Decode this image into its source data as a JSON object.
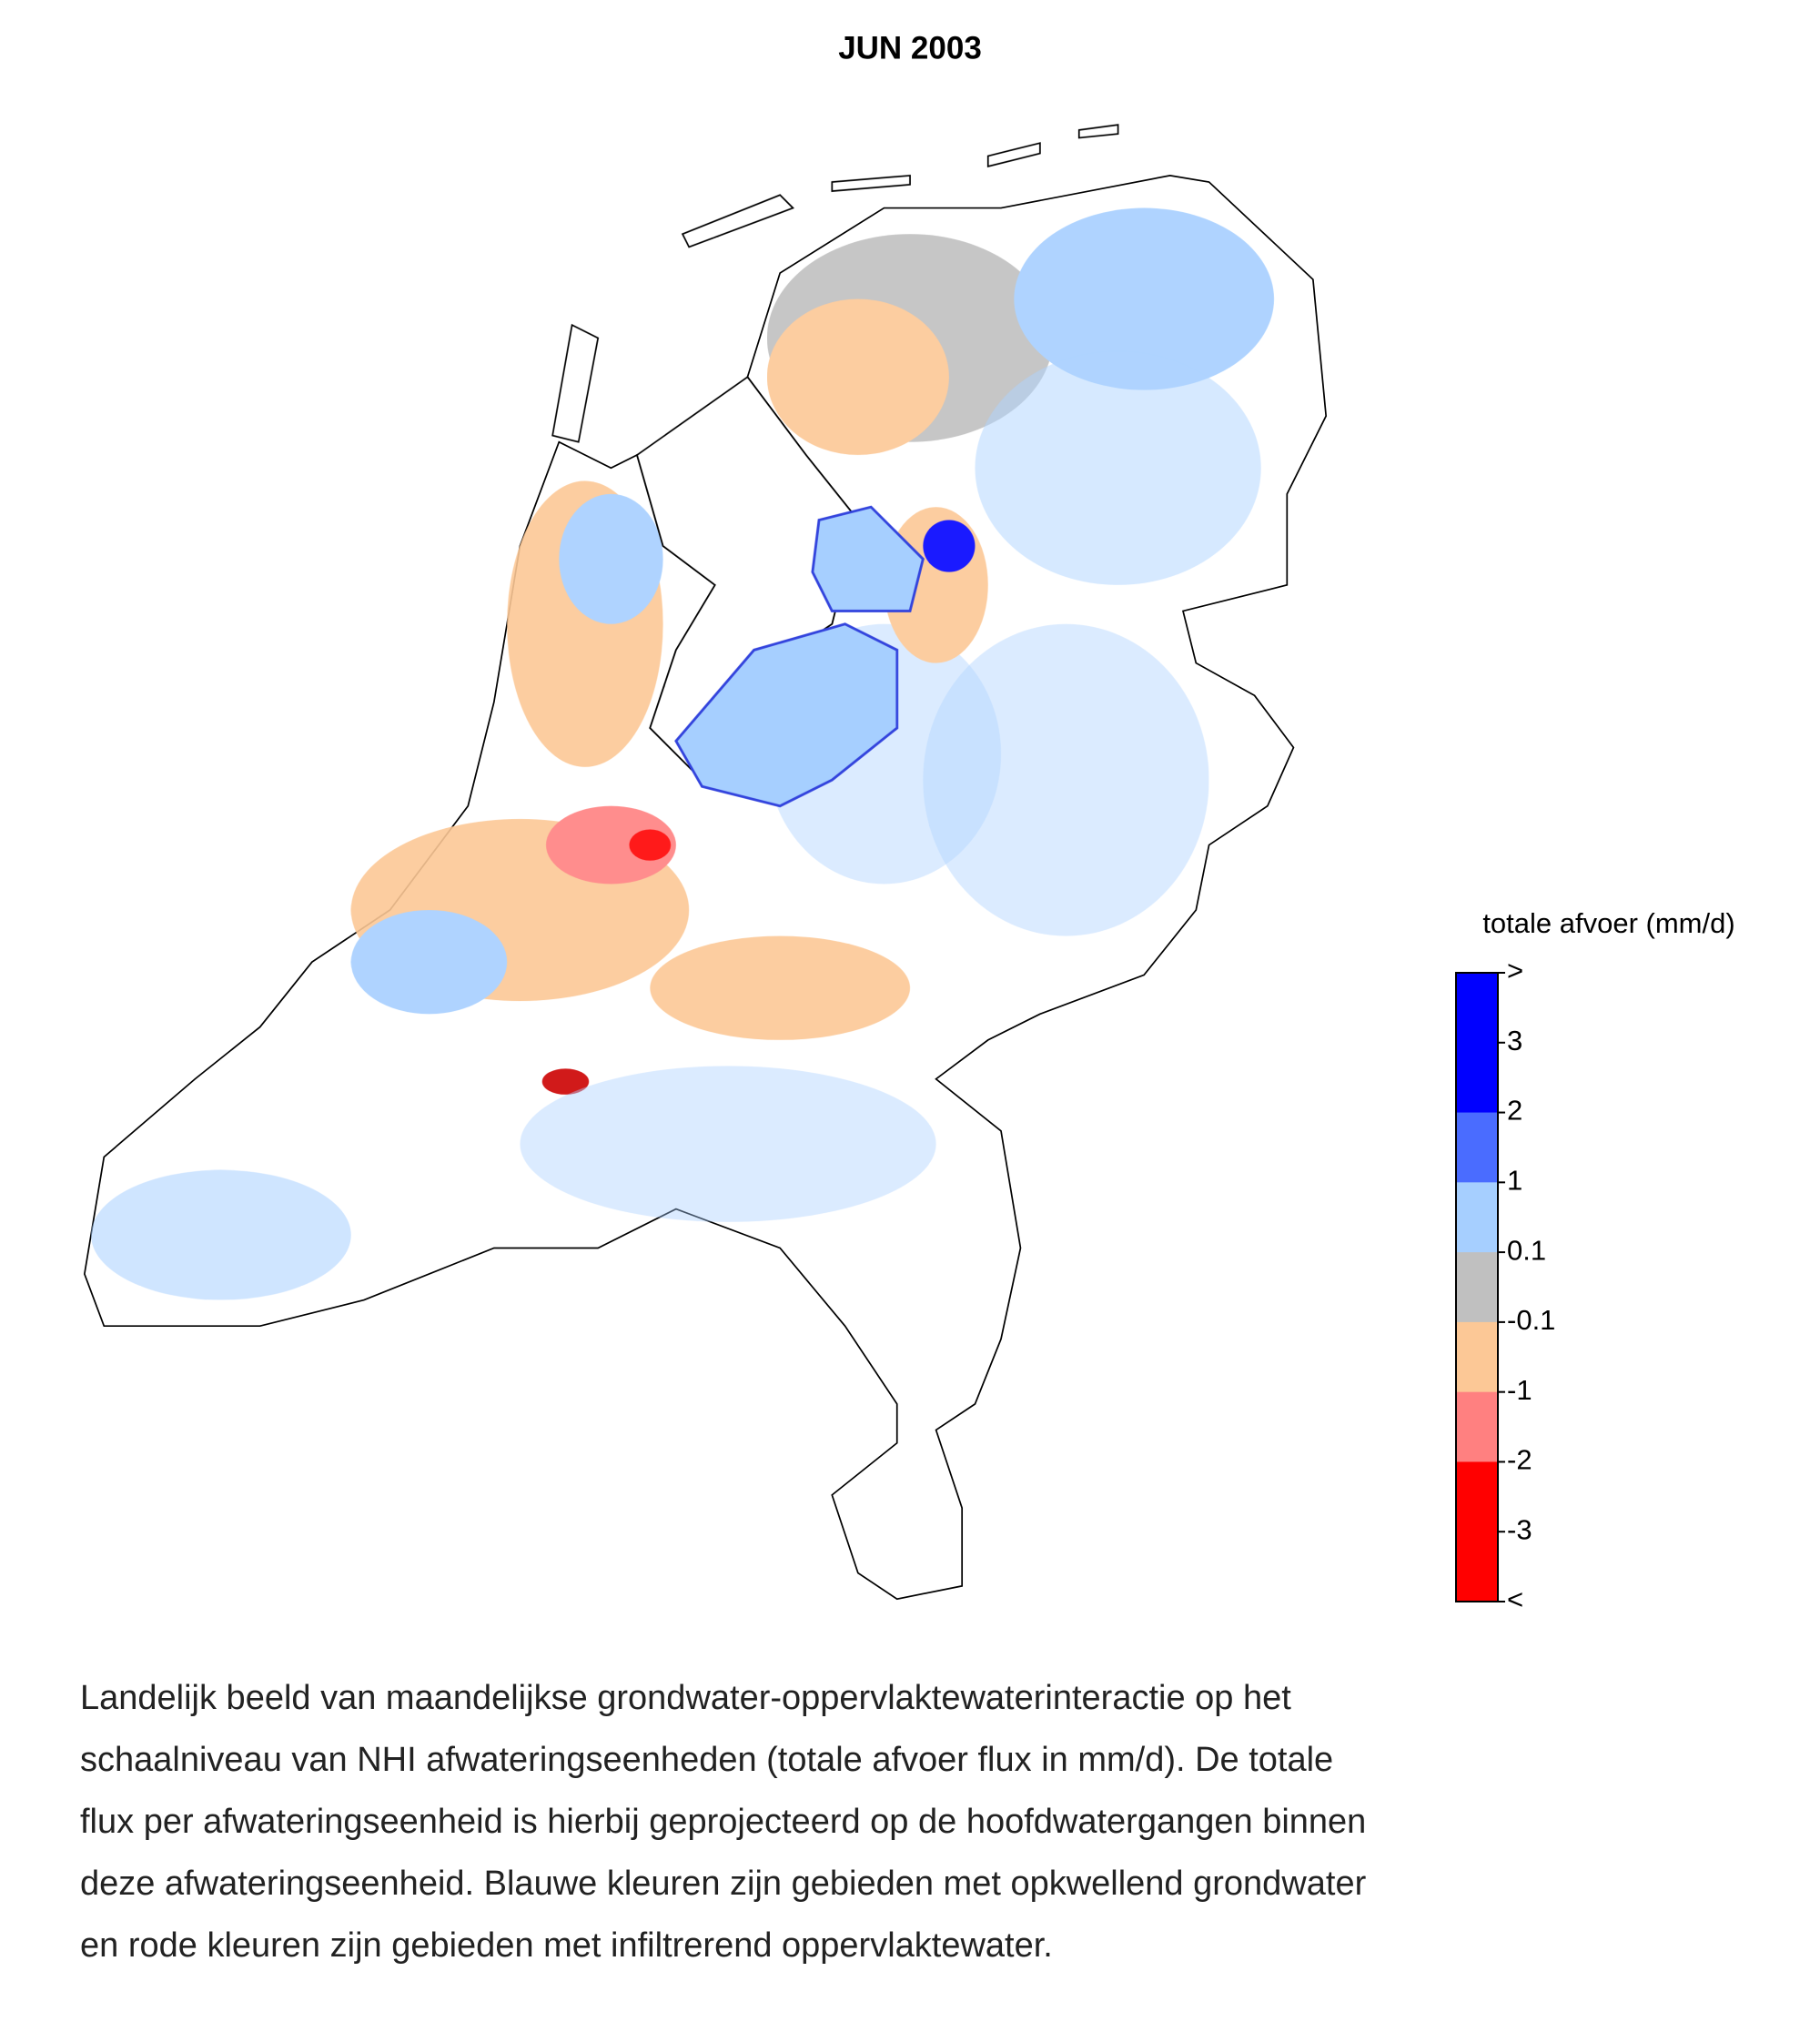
{
  "title": "JUN 2003",
  "legend": {
    "title": "totale afvoer (mm/d)",
    "labels": [
      ">",
      3,
      2,
      1,
      0.1,
      -0.1,
      -1,
      -2,
      -3,
      "<"
    ],
    "colors": [
      "#0000ff",
      "#0000ff",
      "#4a6cff",
      "#a6cfff",
      "#c0c0c0",
      "#fcc896",
      "#ff8080",
      "#ff0000",
      "#ff0000"
    ]
  },
  "caption": {
    "lines": [
      "Landelijk beeld van maandelijkse grondwater-oppervlaktewaterinteractie op het",
      "schaalniveau van NHI afwateringseenheden (totale afvoer flux in mm/d). De totale",
      "flux per afwateringseenheid is hierbij geprojecteerd op de hoofdwatergangen binnen",
      "deze afwateringseenheid. Blauwe kleuren zijn gebieden met opkwellend grondwater",
      "en rode kleuren zijn gebieden met infiltrerend oppervlaktewater."
    ]
  }
}
